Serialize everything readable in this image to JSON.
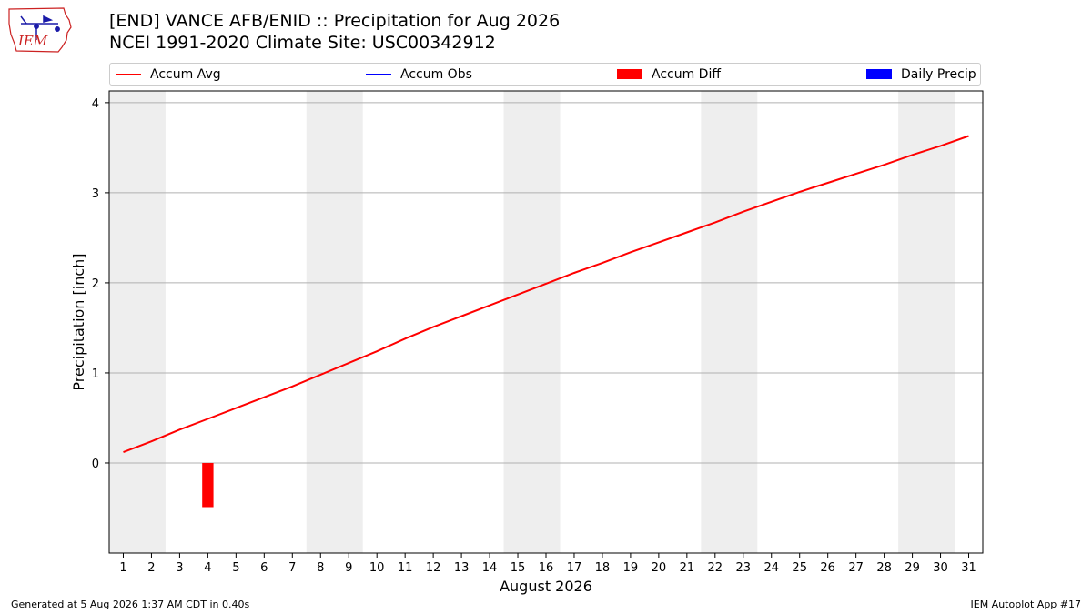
{
  "logo": {
    "text": "IEM"
  },
  "header": {
    "title_line1": "[END] VANCE AFB/ENID :: Precipitation for Aug 2026",
    "title_line2": "NCEI 1991-2020 Climate Site: USC00342912"
  },
  "legend": {
    "items": [
      {
        "label": "Accum Avg",
        "color": "#ff0000",
        "kind": "line"
      },
      {
        "label": "Accum Obs",
        "color": "#0000ff",
        "kind": "line"
      },
      {
        "label": "Accum Diff",
        "color": "#ff0000",
        "kind": "bar"
      },
      {
        "label": "Daily Precip",
        "color": "#0000ff",
        "kind": "bar"
      }
    ]
  },
  "footer": {
    "left": "Generated at 5 Aug 2026 1:37 AM CDT in 0.40s",
    "right": "IEM Autoplot App #17"
  },
  "chart_data": {
    "type": "line",
    "xlabel": "August 2026",
    "ylabel": "Precipitation [inch]",
    "x": [
      1,
      2,
      3,
      4,
      5,
      6,
      7,
      8,
      9,
      10,
      11,
      12,
      13,
      14,
      15,
      16,
      17,
      18,
      19,
      20,
      21,
      22,
      23,
      24,
      25,
      26,
      27,
      28,
      29,
      30,
      31
    ],
    "xlim": [
      0.5,
      31.5
    ],
    "ylim": [
      -1.0,
      4.13
    ],
    "yticks": [
      0,
      1,
      2,
      3,
      4
    ],
    "grid": "horizontal",
    "legend_position": "top",
    "weekend_shading": [
      [
        1,
        2
      ],
      [
        8,
        9
      ],
      [
        15,
        16
      ],
      [
        22,
        23
      ],
      [
        29,
        30
      ]
    ],
    "series": [
      {
        "name": "Accum Avg",
        "type": "line",
        "color": "#ff0000",
        "values": [
          0.12,
          0.24,
          0.37,
          0.49,
          0.61,
          0.73,
          0.85,
          0.98,
          1.11,
          1.24,
          1.38,
          1.51,
          1.63,
          1.75,
          1.87,
          1.99,
          2.11,
          2.22,
          2.34,
          2.45,
          2.56,
          2.67,
          2.79,
          2.9,
          3.01,
          3.11,
          3.21,
          3.31,
          3.42,
          3.52,
          3.63
        ]
      },
      {
        "name": "Accum Diff",
        "type": "bar",
        "color": "#ff0000",
        "points": [
          {
            "x": 4,
            "value": -0.49
          }
        ]
      }
    ]
  }
}
